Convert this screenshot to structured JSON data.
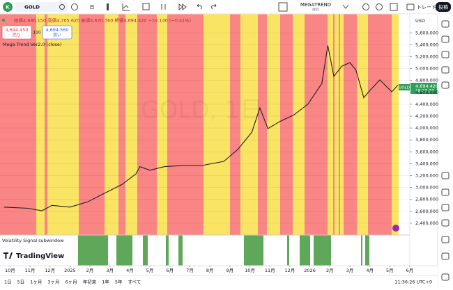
{
  "toolbar": {
    "symbol": "GOLD",
    "interval": "日",
    "layout_name": "MEGATREND",
    "save_status": "保存",
    "trade": "トレード",
    "publish": "投稿"
  },
  "legend": {
    "ohlc": "始値4,686.150 高値4,705.620 安値4,670.360 終値4,694.420 −19.140 (−0.41%)",
    "sell_price": "4,694.450",
    "sell": "売り",
    "spread": "110",
    "buy_price": "4,694.560",
    "buy": "買い",
    "indicator": "Mega Trend Ver2.0 (close)"
  },
  "price_scale": {
    "currency": "USD",
    "last_symbol": "GOLD",
    "last_price": "4,694,420",
    "countdown": "18:23:33"
  },
  "watermark": "GOLD, 1日",
  "subwindow": {
    "title": "Volatility Signal subwindow"
  },
  "logo": "TradingView",
  "range_buttons": [
    "1日",
    "5日",
    "1ヶ月",
    "3ヶ月",
    "6ヶ月",
    "年初来",
    "1年",
    "5年",
    "すべて"
  ],
  "clock": "11:36:26 UTC+9",
  "chart_data": {
    "type": "line",
    "color": "#1e1e1e",
    "grid": true,
    "x": [
      -0.3,
      0.9,
      1.6,
      2.1,
      3.0,
      3.9,
      4.7,
      5.6,
      6.3,
      6.5,
      7.0,
      7.7,
      8.6,
      9.6,
      10.7,
      11.4,
      12.1,
      12.5,
      12.9,
      13.5,
      14.2,
      14.9,
      15.6,
      15.9,
      16.2,
      16.6,
      17.0,
      17.3,
      17.7,
      18.0,
      18.5,
      19.1,
      19.4
    ],
    "values": [
      2670000,
      2650000,
      2610000,
      2700000,
      2670000,
      2760000,
      2900000,
      3050000,
      3230000,
      3350000,
      3290000,
      3350000,
      3370000,
      3370000,
      3440000,
      3640000,
      3930000,
      4340000,
      3990000,
      4110000,
      4220000,
      4400000,
      4750000,
      5390000,
      4870000,
      5040000,
      5100000,
      4980000,
      4510000,
      4630000,
      4810000,
      4610000,
      4720000
    ],
    "xlim": [
      -0.5,
      20
    ],
    "xticks": [
      {
        "value": 0,
        "label": "10月"
      },
      {
        "value": 1,
        "label": "11月"
      },
      {
        "value": 2,
        "label": "12月"
      },
      {
        "value": 3,
        "label": "2025"
      },
      {
        "value": 4,
        "label": "2月"
      },
      {
        "value": 5,
        "label": "3月"
      },
      {
        "value": 6,
        "label": "4月"
      },
      {
        "value": 7,
        "label": "5月"
      },
      {
        "value": 8,
        "label": "6月"
      },
      {
        "value": 9,
        "label": "7月"
      },
      {
        "value": 10,
        "label": "8月"
      },
      {
        "value": 11,
        "label": "9月"
      },
      {
        "value": 12,
        "label": "10月"
      },
      {
        "value": 13,
        "label": "11月"
      },
      {
        "value": 14,
        "label": "12月"
      },
      {
        "value": 15,
        "label": "2026"
      },
      {
        "value": 16,
        "label": "2月"
      },
      {
        "value": 17,
        "label": "3月"
      },
      {
        "value": 18,
        "label": "4月"
      },
      {
        "value": 19,
        "label": "5月"
      },
      {
        "value": 20,
        "label": "6月"
      }
    ],
    "ylim": [
      2200000,
      5920000
    ],
    "yticks": [
      {
        "value": 2400000,
        "label": "2,400,000"
      },
      {
        "value": 2600000,
        "label": "2,600,000"
      },
      {
        "value": 2800000,
        "label": "2,800,000"
      },
      {
        "value": 3000000,
        "label": "3,000,000"
      },
      {
        "value": 3200000,
        "label": "3,200,000"
      },
      {
        "value": 3400000,
        "label": "3,400,000"
      },
      {
        "value": 3600000,
        "label": "3,600,000"
      },
      {
        "value": 3800000,
        "label": "3,800,000"
      },
      {
        "value": 4000000,
        "label": "4,000,000"
      },
      {
        "value": 4200000,
        "label": "4,200,000"
      },
      {
        "value": 4400000,
        "label": "4,400,000"
      },
      {
        "value": 4600000,
        "label": "4,600,000"
      },
      {
        "value": 4800000,
        "label": "4,800,000"
      },
      {
        "value": 5000000,
        "label": "5,000,000"
      },
      {
        "value": 5200000,
        "label": "5,200,000"
      },
      {
        "value": 5400000,
        "label": "5,400,000"
      },
      {
        "value": 5600000,
        "label": "5,600,000"
      }
    ]
  }
}
